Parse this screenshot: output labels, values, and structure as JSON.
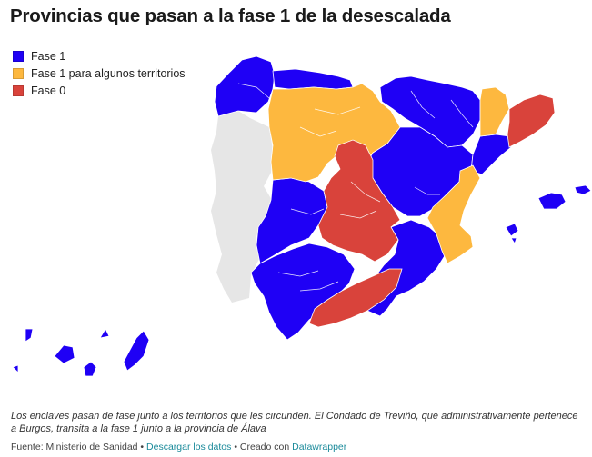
{
  "title": "Provincias que pasan a la fase 1 de la desescalada",
  "legend": {
    "items": [
      {
        "label": "Fase 1",
        "color": "#1f00f5"
      },
      {
        "label": "Fase 1 para algunos territorios",
        "color": "#fdb83f"
      },
      {
        "label": "Fase 0",
        "color": "#d9433b"
      }
    ]
  },
  "map": {
    "neighbor_color": "#e6e6e6",
    "border_color": "#ffffff"
  },
  "note": "Los enclaves pasan de fase junto a los territorios que les circunden. El Condado de Treviño, que administrativamente pertenece a Burgos, transita a la fase 1 junto a la provincia de Álava",
  "footer": {
    "source": "Fuente: Ministerio de Sanidad",
    "sep1": " • ",
    "download": "Descargar los datos",
    "sep2": " • Creado con ",
    "tool": "Datawrapper"
  }
}
